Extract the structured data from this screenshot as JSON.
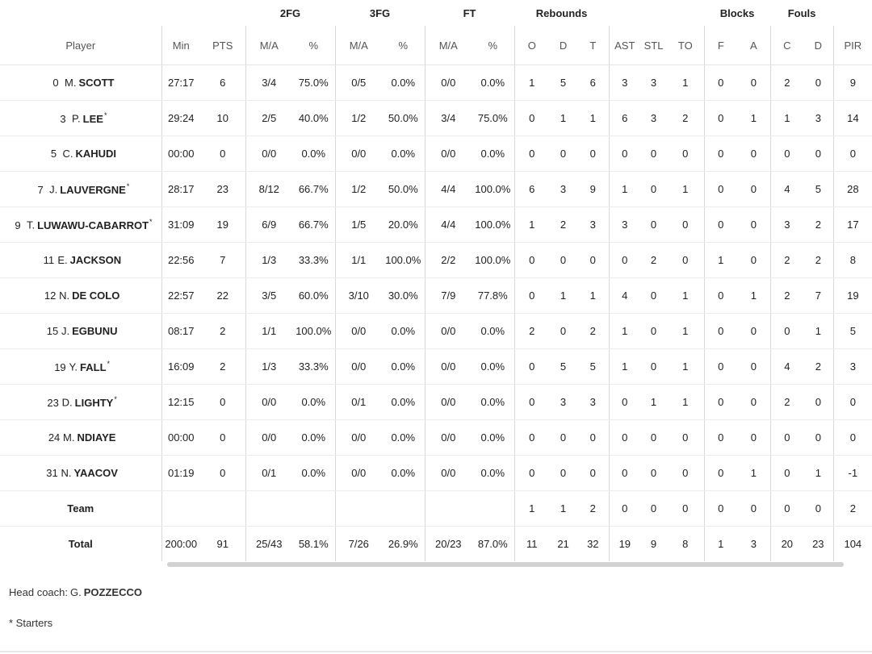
{
  "groups": {
    "fg2": "2FG",
    "fg3": "3FG",
    "ft": "FT",
    "reb": "Rebounds",
    "blk": "Blocks",
    "fouls": "Fouls"
  },
  "columns": [
    "Player",
    "Min",
    "PTS",
    "M/A",
    "%",
    "M/A",
    "%",
    "M/A",
    "%",
    "O",
    "D",
    "T",
    "AST",
    "STL",
    "TO",
    "F",
    "A",
    "C",
    "D",
    "PIR"
  ],
  "players": [
    {
      "num": "0",
      "init": "M.",
      "name": "SCOTT",
      "starter": false,
      "stats": [
        "27:17",
        "6",
        "3/4",
        "75.0%",
        "0/5",
        "0.0%",
        "0/0",
        "0.0%",
        "1",
        "5",
        "6",
        "3",
        "3",
        "1",
        "0",
        "0",
        "2",
        "0",
        "9"
      ]
    },
    {
      "num": "3",
      "init": "P.",
      "name": "LEE",
      "starter": true,
      "stats": [
        "29:24",
        "10",
        "2/5",
        "40.0%",
        "1/2",
        "50.0%",
        "3/4",
        "75.0%",
        "0",
        "1",
        "1",
        "6",
        "3",
        "2",
        "0",
        "1",
        "1",
        "3",
        "14"
      ]
    },
    {
      "num": "5",
      "init": "C.",
      "name": "KAHUDI",
      "starter": false,
      "stats": [
        "00:00",
        "0",
        "0/0",
        "0.0%",
        "0/0",
        "0.0%",
        "0/0",
        "0.0%",
        "0",
        "0",
        "0",
        "0",
        "0",
        "0",
        "0",
        "0",
        "0",
        "0",
        "0"
      ]
    },
    {
      "num": "7",
      "init": "J.",
      "name": "LAUVERGNE",
      "starter": true,
      "stats": [
        "28:17",
        "23",
        "8/12",
        "66.7%",
        "1/2",
        "50.0%",
        "4/4",
        "100.0%",
        "6",
        "3",
        "9",
        "1",
        "0",
        "1",
        "0",
        "0",
        "4",
        "5",
        "28"
      ]
    },
    {
      "num": "9",
      "init": "T.",
      "name": "LUWAWU-CABARROT",
      "starter": true,
      "stats": [
        "31:09",
        "19",
        "6/9",
        "66.7%",
        "1/5",
        "20.0%",
        "4/4",
        "100.0%",
        "1",
        "2",
        "3",
        "3",
        "0",
        "0",
        "0",
        "0",
        "3",
        "2",
        "17"
      ]
    },
    {
      "num": "11",
      "init": "E.",
      "name": "JACKSON",
      "starter": false,
      "stats": [
        "22:56",
        "7",
        "1/3",
        "33.3%",
        "1/1",
        "100.0%",
        "2/2",
        "100.0%",
        "0",
        "0",
        "0",
        "0",
        "2",
        "0",
        "1",
        "0",
        "2",
        "2",
        "8"
      ]
    },
    {
      "num": "12",
      "init": "N.",
      "name": "DE COLO",
      "starter": false,
      "stats": [
        "22:57",
        "22",
        "3/5",
        "60.0%",
        "3/10",
        "30.0%",
        "7/9",
        "77.8%",
        "0",
        "1",
        "1",
        "4",
        "0",
        "1",
        "0",
        "1",
        "2",
        "7",
        "19"
      ]
    },
    {
      "num": "15",
      "init": "J.",
      "name": "EGBUNU",
      "starter": false,
      "stats": [
        "08:17",
        "2",
        "1/1",
        "100.0%",
        "0/0",
        "0.0%",
        "0/0",
        "0.0%",
        "2",
        "0",
        "2",
        "1",
        "0",
        "1",
        "0",
        "0",
        "0",
        "1",
        "5"
      ]
    },
    {
      "num": "19",
      "init": "Y.",
      "name": "FALL",
      "starter": true,
      "stats": [
        "16:09",
        "2",
        "1/3",
        "33.3%",
        "0/0",
        "0.0%",
        "0/0",
        "0.0%",
        "0",
        "5",
        "5",
        "1",
        "0",
        "1",
        "0",
        "0",
        "4",
        "2",
        "3"
      ]
    },
    {
      "num": "23",
      "init": "D.",
      "name": "LIGHTY",
      "starter": true,
      "stats": [
        "12:15",
        "0",
        "0/0",
        "0.0%",
        "0/1",
        "0.0%",
        "0/0",
        "0.0%",
        "0",
        "3",
        "3",
        "0",
        "1",
        "1",
        "0",
        "0",
        "2",
        "0",
        "0"
      ]
    },
    {
      "num": "24",
      "init": "M.",
      "name": "NDIAYE",
      "starter": false,
      "stats": [
        "00:00",
        "0",
        "0/0",
        "0.0%",
        "0/0",
        "0.0%",
        "0/0",
        "0.0%",
        "0",
        "0",
        "0",
        "0",
        "0",
        "0",
        "0",
        "0",
        "0",
        "0",
        "0"
      ]
    },
    {
      "num": "31",
      "init": "N.",
      "name": "YAACOV",
      "starter": false,
      "stats": [
        "01:19",
        "0",
        "0/1",
        "0.0%",
        "0/0",
        "0.0%",
        "0/0",
        "0.0%",
        "0",
        "0",
        "0",
        "0",
        "0",
        "0",
        "0",
        "1",
        "0",
        "1",
        "-1"
      ]
    }
  ],
  "team": {
    "label": "Team",
    "stats": [
      "",
      "",
      "",
      "",
      "",
      "",
      "",
      "",
      "1",
      "1",
      "2",
      "0",
      "0",
      "0",
      "0",
      "0",
      "0",
      "0",
      "2"
    ]
  },
  "total": {
    "label": "Total",
    "stats": [
      "200:00",
      "91",
      "25/43",
      "58.1%",
      "7/26",
      "26.9%",
      "20/23",
      "87.0%",
      "11",
      "21",
      "32",
      "19",
      "9",
      "8",
      "1",
      "3",
      "20",
      "23",
      "104"
    ]
  },
  "starter_mark": "*",
  "footer": {
    "coach_label": "Head coach:",
    "coach_initial": "G.",
    "coach_name": "POZZECCO",
    "starters_note": "* Starters"
  }
}
